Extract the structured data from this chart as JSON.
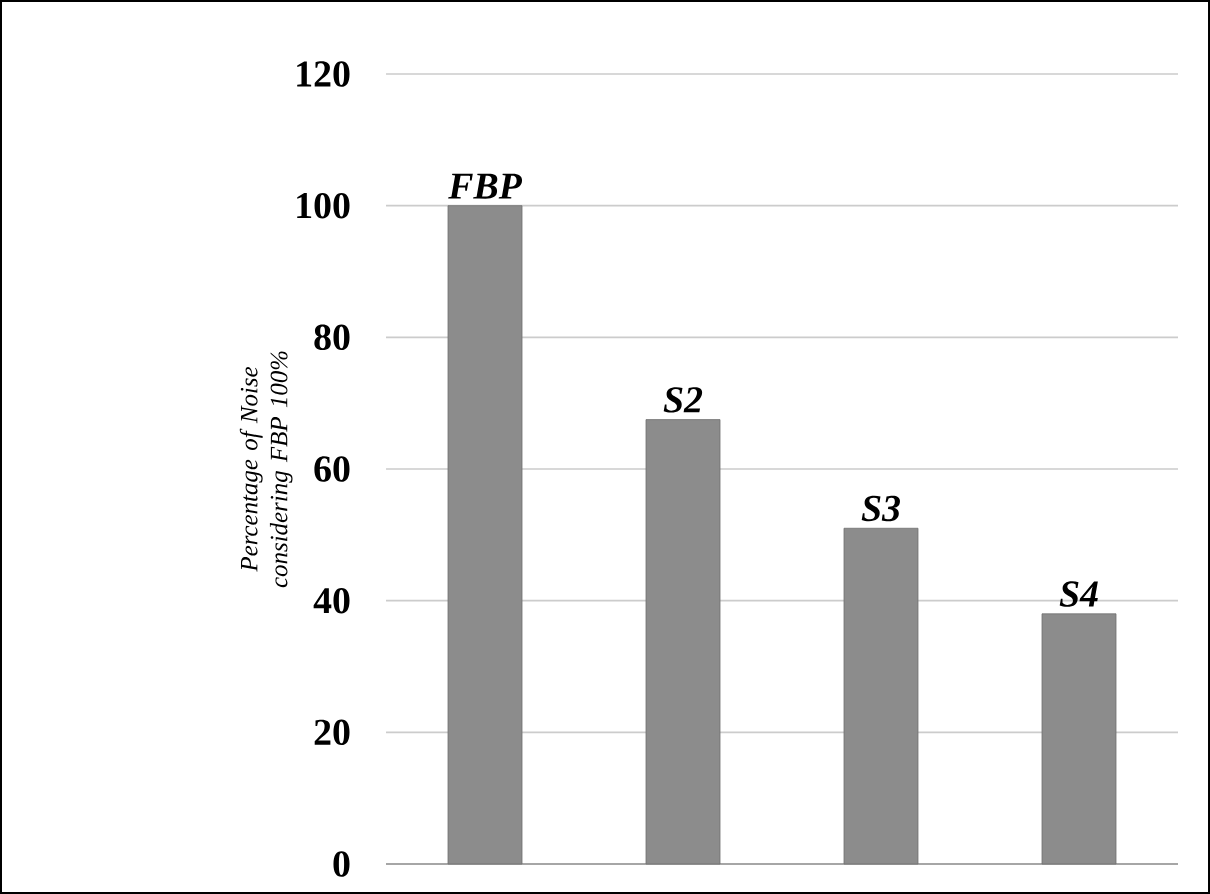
{
  "chart_data": {
    "type": "bar",
    "ylabel": "Percentage of Noise considering FBP 100%",
    "categories": [
      "FBP",
      "S2",
      "S3",
      "S4"
    ],
    "values": [
      100,
      67.5,
      51,
      38
    ],
    "color": "#8c8c8c",
    "ylim": [
      0,
      120
    ],
    "yticks": [
      0,
      20,
      40,
      60,
      80,
      100,
      120
    ],
    "grid": "y"
  }
}
